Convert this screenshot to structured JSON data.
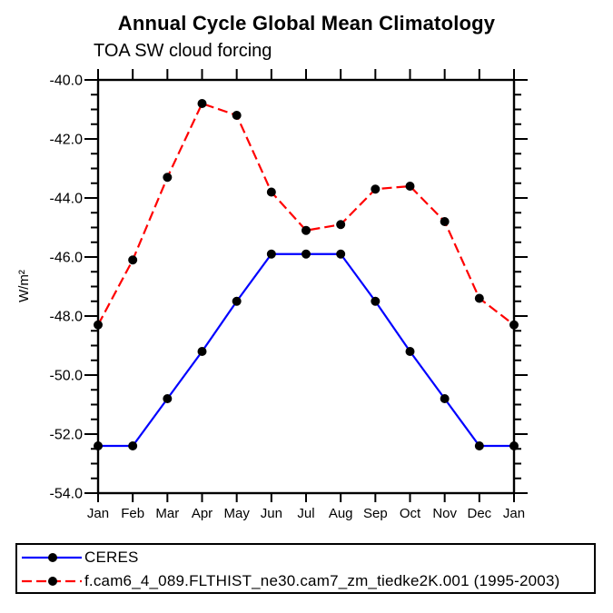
{
  "chart_data": {
    "type": "line",
    "title": "Annual Cycle Global Mean Climatology",
    "subtitle": "TOA SW cloud forcing",
    "ylabel": "W/m²",
    "xlabel": "",
    "x_categories": [
      "Jan",
      "Feb",
      "Mar",
      "Apr",
      "May",
      "Jun",
      "Jul",
      "Aug",
      "Sep",
      "Oct",
      "Nov",
      "Dec",
      "Jan"
    ],
    "ylim": [
      -54.0,
      -40.0
    ],
    "ytick_major_step": 2.0,
    "ytick_minor_step": 0.5,
    "ytick_labels": [
      "-40.0",
      "-42.0",
      "-44.0",
      "-46.0",
      "-48.0",
      "-50.0",
      "-52.0",
      "-54.0"
    ],
    "grid": false,
    "legend_position": "bottom-left-outside",
    "series": [
      {
        "name": "CERES",
        "color": "#0000ff",
        "line_style": "solid",
        "marker": "filled-circle",
        "marker_color": "#000000",
        "values": [
          -52.4,
          -52.4,
          -50.8,
          -49.2,
          -47.5,
          -45.9,
          -45.9,
          -45.9,
          -47.5,
          -49.2,
          -50.8,
          -52.4,
          -52.4
        ]
      },
      {
        "name": "f.cam6_4_089.FLTHIST_ne30.cam7_zm_tiedke2K.001 (1995-2003)",
        "color": "#ff0000",
        "line_style": "dashed",
        "marker": "filled-circle",
        "marker_color": "#000000",
        "values": [
          -48.3,
          -46.1,
          -43.3,
          -40.8,
          -41.2,
          -43.8,
          -45.1,
          -44.9,
          -43.7,
          -43.6,
          -44.8,
          -47.4,
          -48.3
        ]
      }
    ],
    "axis_color": "#000000"
  }
}
